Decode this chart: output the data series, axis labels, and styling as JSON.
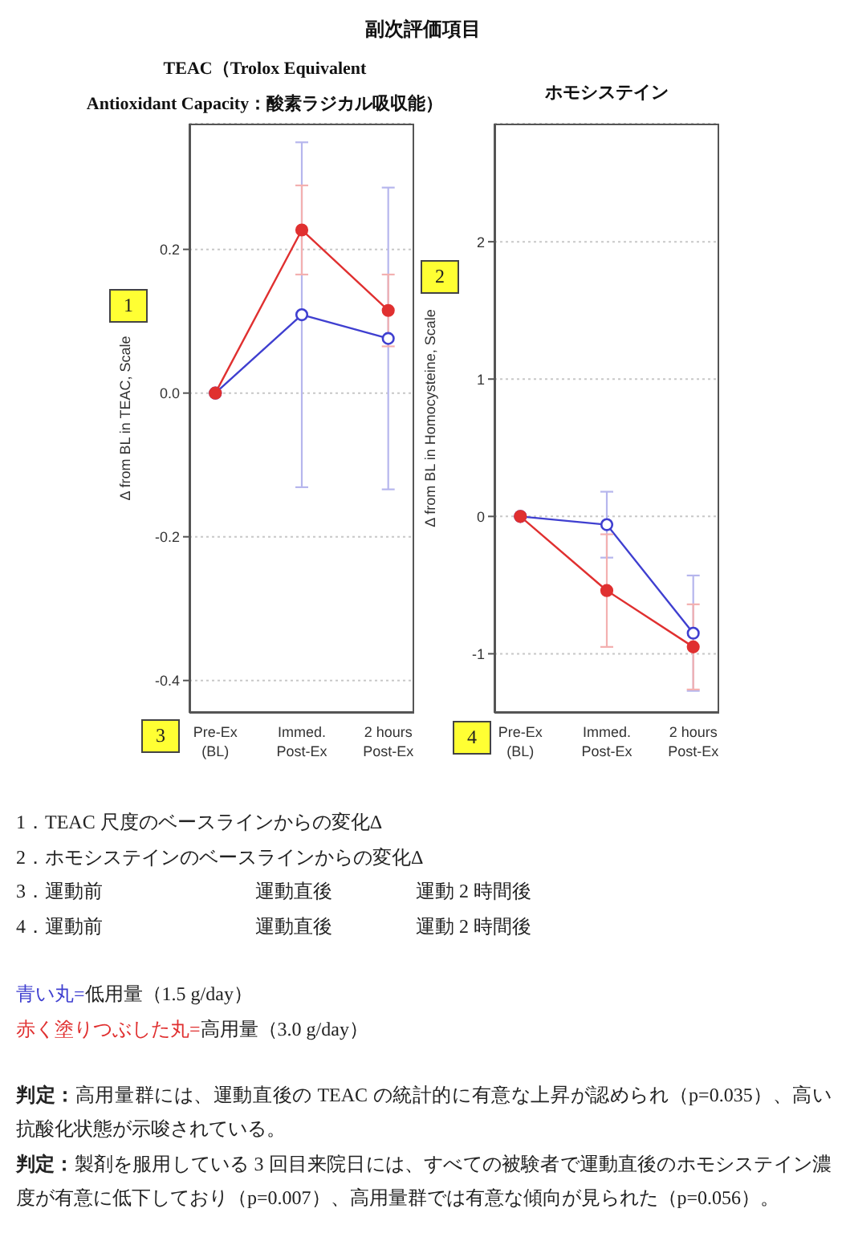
{
  "chart_data": [
    {
      "type": "other",
      "title": "副次評価項目"
    },
    {
      "type": "line",
      "title": "TEAC（Trolox Equivalent\nAntioxidant Capacity：酸素ラジカル吸収能）",
      "ylabel": "Δ from BL in TEAC, Scale",
      "categories": [
        "Pre-Ex\n(BL)",
        "Immed.\nPost-Ex",
        "2 hours\nPost-Ex"
      ],
      "series": [
        {
          "color": "#3f3fd0",
          "values": [
            0,
            0.109,
            0.076
          ],
          "errors": [
            null,
            0.24,
            0.21
          ]
        },
        {
          "color": "#e03030",
          "values": [
            0,
            0.227,
            0.115
          ],
          "errors": [
            null,
            0.062,
            0.05
          ]
        }
      ],
      "ylim": [
        -0.445,
        0.375
      ],
      "yticks": [
        -0.4,
        -0.2,
        {
          "value": 0,
          "label": "0.0"
        },
        0.2
      ],
      "grid": "y",
      "marker": "circle",
      "annotations": [
        "1",
        "3"
      ]
    },
    {
      "type": "line",
      "title": "ホモシステイン",
      "ylabel": "Δ from BL in Homocysteine, Scale",
      "categories": [
        "Pre-Ex\n(BL)",
        "Immed.\nPost-Ex",
        "2 hours\nPost-Ex"
      ],
      "series": [
        {
          "color": "#3f3fd0",
          "values": [
            0,
            -0.06,
            -0.85
          ],
          "errors": [
            null,
            0.24,
            0.42
          ]
        },
        {
          "color": "#e03030",
          "values": [
            0,
            -0.54,
            -0.95
          ],
          "errors": [
            null,
            0.41,
            0.31
          ]
        }
      ],
      "ylim": [
        -1.43,
        2.86
      ],
      "yticks": [
        -1,
        0,
        1,
        2
      ],
      "grid": "y",
      "marker": "circle",
      "annotations": [
        "2",
        "4"
      ]
    },
    {
      "type": "other",
      "annotations": [
        "1．TEAC 尺度のベースラインからの変化Δ",
        "2．ホモシステインのベースラインからの変化Δ",
        "3．運動前\t運動直後\t運動 2 時間後",
        "4．運動前\t運動直後\t運動 2 時間後",
        "青い丸=低用量（1.5 g/day）",
        "赤く塗りつぶした丸=高用量（3.0 g/day）",
        "判定：高用量群には、運動直後の TEAC の統計的に有意な上昇が認められ（p=0.035）、高い抗酸化状態が示唆されている。",
        "判定：製剤を服用している 3 回目来院日には、すべての被験者で運動直後のホモシステイン濃度が有意に低下しており（p=0.007）、高用量群では有意な傾向が見られた（p=0.056）。"
      ]
    }
  ]
}
